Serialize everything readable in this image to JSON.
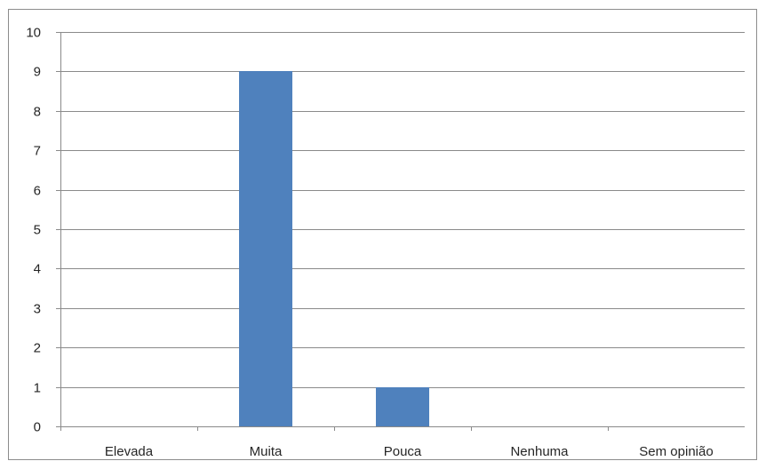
{
  "chart_data": {
    "type": "bar",
    "categories": [
      "Elevada",
      "Muita",
      "Pouca",
      "Nenhuma",
      "Sem opinião"
    ],
    "values": [
      0,
      9,
      1,
      0,
      0
    ],
    "title": "",
    "xlabel": "",
    "ylabel": "",
    "ylim": [
      0,
      10
    ],
    "yticks": [
      "0",
      "1",
      "2",
      "3",
      "4",
      "5",
      "6",
      "7",
      "8",
      "9",
      "10"
    ],
    "grid": true,
    "legend": "none",
    "bar_color": "#4f81bd"
  }
}
